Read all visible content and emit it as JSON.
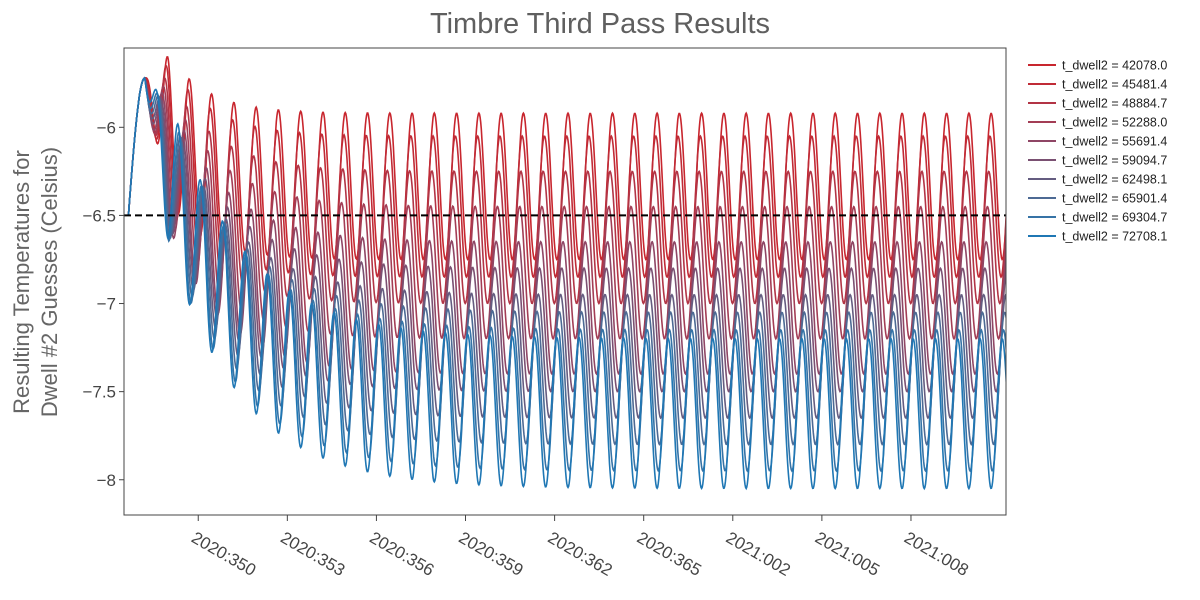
{
  "chart_data": {
    "type": "line",
    "title": "Timbre Third Pass Results",
    "ylabel_lines": [
      "Resulting Temperatures for",
      "Dwell #2 Guesses (Celsius)"
    ],
    "xlabel": "",
    "x_unit": "day of year (YYYY:DDD), continuous days since 2020:000",
    "x_range": [
      347.5,
      377.2
    ],
    "x_ticks": [
      {
        "value": 350,
        "label": "2020:350"
      },
      {
        "value": 353,
        "label": "2020:353"
      },
      {
        "value": 356,
        "label": "2020:356"
      },
      {
        "value": 359,
        "label": "2020:359"
      },
      {
        "value": 362,
        "label": "2020:362"
      },
      {
        "value": 365,
        "label": "2020:365"
      },
      {
        "value": 368,
        "label": "2021:002"
      },
      {
        "value": 371,
        "label": "2021:005"
      },
      {
        "value": 374,
        "label": "2021:008"
      }
    ],
    "ylim": [
      -8.2,
      -5.55
    ],
    "y_ticks": [
      {
        "value": -6,
        "label": "−6"
      },
      {
        "value": -6.5,
        "label": "−6.5"
      },
      {
        "value": -7,
        "label": "−7"
      },
      {
        "value": -7.5,
        "label": "−7.5"
      },
      {
        "value": -8,
        "label": "−8"
      }
    ],
    "reference_line": {
      "y": -6.5,
      "style": "dashed",
      "color": "#000000"
    },
    "grid": false,
    "legend_placement": "top-right, outside plot",
    "oscillation_period_days": 0.75,
    "series": [
      {
        "name": "t_dwell2 = 42078.0",
        "color": "#c8262e",
        "steady_max": -5.92,
        "steady_min": -6.75
      },
      {
        "name": "t_dwell2 = 45481.4",
        "color": "#c02b36",
        "steady_max": -6.05,
        "steady_min": -6.85
      },
      {
        "name": "t_dwell2 = 48884.7",
        "color": "#b23445",
        "steady_max": -6.25,
        "steady_min": -7.0
      },
      {
        "name": "t_dwell2 = 52288.0",
        "color": "#a33d55",
        "steady_max": -6.45,
        "steady_min": -7.2
      },
      {
        "name": "t_dwell2 = 55691.4",
        "color": "#8f4665",
        "steady_max": -6.65,
        "steady_min": -7.4
      },
      {
        "name": "t_dwell2 = 59094.7",
        "color": "#7a5072",
        "steady_max": -6.8,
        "steady_min": -7.5
      },
      {
        "name": "t_dwell2 = 62498.1",
        "color": "#645c80",
        "steady_max": -6.95,
        "steady_min": -7.65
      },
      {
        "name": "t_dwell2 = 65901.4",
        "color": "#4d6a94",
        "steady_max": -7.05,
        "steady_min": -7.8
      },
      {
        "name": "t_dwell2 = 69304.7",
        "color": "#3673a6",
        "steady_max": -7.15,
        "steady_min": -7.95
      },
      {
        "name": "t_dwell2 = 72708.1",
        "color": "#1f77b4",
        "steady_max": -7.2,
        "steady_min": -8.05
      }
    ]
  }
}
